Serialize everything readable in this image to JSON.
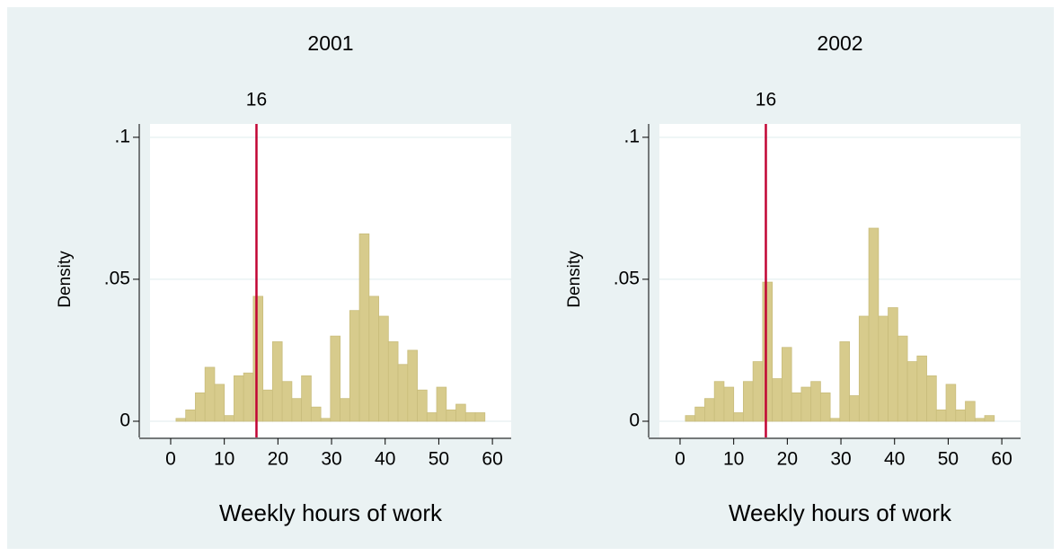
{
  "chart_data": [
    {
      "type": "histogram",
      "title": "2001",
      "xlabel": "Weekly hours of work",
      "ylabel": "Density",
      "bins": [
        1,
        2.8,
        4.6,
        6.4,
        8.2,
        10,
        11.8,
        13.6,
        15.4,
        17.2,
        19,
        20.8,
        22.6,
        24.4,
        26.2,
        28,
        29.8,
        31.6,
        33.4,
        35.2,
        37,
        38.8,
        40.6,
        42.4,
        44.2,
        46,
        47.8,
        49.6,
        51.4,
        53.2,
        55,
        56.8,
        58.6
      ],
      "values": [
        0.001,
        0.004,
        0.01,
        0.019,
        0.013,
        0.002,
        0.016,
        0.017,
        0.044,
        0.011,
        0.028,
        0.014,
        0.008,
        0.016,
        0.005,
        0.001,
        0.03,
        0.008,
        0.039,
        0.066,
        0.044,
        0.037,
        0.028,
        0.02,
        0.025,
        0.011,
        0.003,
        0.012,
        0.004,
        0.006,
        0.003,
        0.003
      ],
      "color": "#d7cb8c",
      "xlim": [
        -3.85,
        63.5
      ],
      "ylim": [
        -0.0057,
        0.1047
      ],
      "xticks": [
        0,
        10,
        20,
        30,
        40,
        50,
        60
      ],
      "yticks": [
        0,
        {
          "value": 0.05,
          "label": ".05"
        },
        {
          "value": 0.1,
          "label": ".1"
        }
      ],
      "grid": true,
      "xline": 16,
      "xline_color": "#c10534"
    },
    {
      "type": "histogram",
      "title": "2002",
      "xlabel": "Weekly hours of work",
      "ylabel": "Density",
      "bins": [
        1,
        2.8,
        4.6,
        6.4,
        8.2,
        10,
        11.8,
        13.6,
        15.4,
        17.2,
        19,
        20.8,
        22.6,
        24.4,
        26.2,
        28,
        29.8,
        31.6,
        33.4,
        35.2,
        37,
        38.8,
        40.6,
        42.4,
        44.2,
        46,
        47.8,
        49.6,
        51.4,
        53.2,
        55,
        56.8,
        58.6
      ],
      "values": [
        0.002,
        0.005,
        0.008,
        0.014,
        0.012,
        0.003,
        0.014,
        0.021,
        0.049,
        0.015,
        0.026,
        0.01,
        0.012,
        0.014,
        0.01,
        0.001,
        0.028,
        0.009,
        0.037,
        0.068,
        0.037,
        0.04,
        0.03,
        0.021,
        0.023,
        0.016,
        0.004,
        0.013,
        0.004,
        0.007,
        0.001,
        0.002
      ],
      "color": "#d7cb8c",
      "xlim": [
        -3.85,
        63.5
      ],
      "ylim": [
        -0.0057,
        0.1047
      ],
      "xticks": [
        0,
        10,
        20,
        30,
        40,
        50,
        60
      ],
      "yticks": [
        0,
        {
          "value": 0.05,
          "label": ".05"
        },
        {
          "value": 0.1,
          "label": ".1"
        }
      ],
      "grid": true,
      "xline": 16,
      "xline_color": "#c10534"
    }
  ]
}
